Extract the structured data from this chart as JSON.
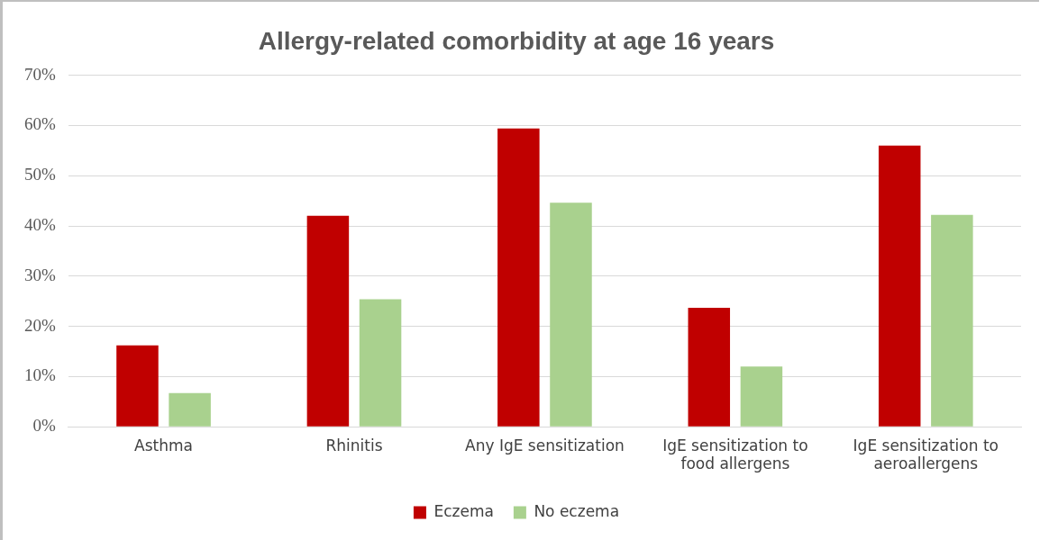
{
  "chart_data": {
    "type": "bar",
    "title": "Allergy-related comorbidity at age 16 years",
    "categories": [
      "Asthma",
      "Rhinitis",
      "Any IgE sensitization",
      "IgE sensitization to food allergens",
      "IgE sensitization to aeroallergens"
    ],
    "series": [
      {
        "name": "Eczema",
        "color": "#c00000",
        "values": [
          16.2,
          42.0,
          59.4,
          23.7,
          56.0
        ]
      },
      {
        "name": "No eczema",
        "color": "#a9d18e",
        "values": [
          6.7,
          25.4,
          44.6,
          12.0,
          42.2
        ]
      }
    ],
    "ylim": [
      0,
      70
    ],
    "yticks": [
      {
        "value": 0,
        "label": "0%"
      },
      {
        "value": 10,
        "label": "10%"
      },
      {
        "value": 20,
        "label": "20%"
      },
      {
        "value": 30,
        "label": "30%"
      },
      {
        "value": 40,
        "label": "40%"
      },
      {
        "value": 50,
        "label": "50%"
      },
      {
        "value": 60,
        "label": "60%"
      },
      {
        "value": 70,
        "label": "70%"
      }
    ],
    "grid": "y",
    "legend": "bottom"
  }
}
